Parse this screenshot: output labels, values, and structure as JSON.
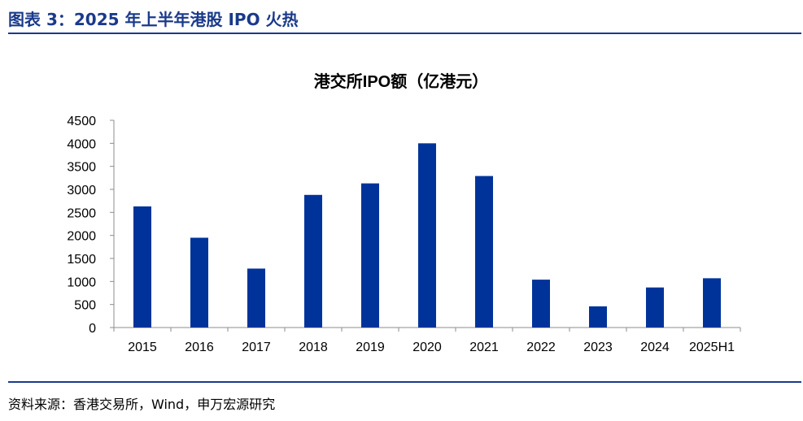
{
  "figure": {
    "title": "图表 3：2025 年上半年港股 IPO 火热",
    "source": "资料来源：香港交易所，Wind，申万宏源研究"
  },
  "colors": {
    "bar": "#00339a",
    "rule": "#1a3a8a",
    "axis": "#8c8c8c"
  },
  "chart_data": {
    "type": "bar",
    "title": "港交所IPO额（亿港元）",
    "xlabel": "",
    "ylabel": "",
    "categories": [
      "2015",
      "2016",
      "2017",
      "2018",
      "2019",
      "2020",
      "2021",
      "2022",
      "2023",
      "2024",
      "2025H1"
    ],
    "values": [
      2630,
      1950,
      1280,
      2880,
      3130,
      4000,
      3290,
      1040,
      460,
      870,
      1070
    ],
    "ylim": [
      0,
      4500
    ],
    "yticks": [
      0,
      500,
      1000,
      1500,
      2000,
      2500,
      3000,
      3500,
      4000,
      4500
    ],
    "grid": false,
    "legend": "none"
  }
}
